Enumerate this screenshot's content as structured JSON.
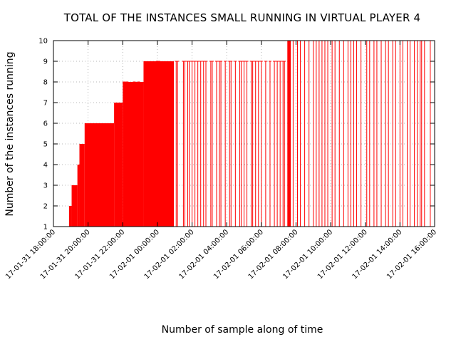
{
  "chart_data": {
    "type": "bar",
    "title": "TOTAL OF THE INSTANCES SMALL RUNNING IN VIRTUAL PLAYER 4",
    "xlabel": "Number of sample along of time",
    "ylabel": "Number of the instances running",
    "ylim": [
      1,
      10
    ],
    "xlim": [
      "2017-01-31 18:00:00",
      "2017-02-01 16:00:00"
    ],
    "grid": true,
    "legend": "none",
    "color": "#ff0000",
    "y_ticks": [
      "1",
      "2",
      "3",
      "4",
      "5",
      "6",
      "7",
      "8",
      "9",
      "10"
    ],
    "x_ticks": [
      "17-01-31 18:00:00",
      "17-01-31 20:00:00",
      "17-01-31 22:00:00",
      "17-02-01 00:00:00",
      "17-02-01 02:00:00",
      "17-02-01 04:00:00",
      "17-02-01 06:00:00",
      "17-02-01 08:00:00",
      "17-02-01 10:00:00",
      "17-02-01 12:00:00",
      "17-02-01 14:00:00",
      "17-02-01 16:00:00"
    ],
    "solid_blocks": [
      {
        "start": "2017-01-31 18:54:00",
        "end": "2017-01-31 19:03:00",
        "value": 2
      },
      {
        "start": "2017-01-31 19:03:00",
        "end": "2017-01-31 19:23:00",
        "value": 3
      },
      {
        "start": "2017-01-31 19:23:00",
        "end": "2017-01-31 19:30:00",
        "value": 4
      },
      {
        "start": "2017-01-31 19:30:00",
        "end": "2017-01-31 19:48:00",
        "value": 5
      },
      {
        "start": "2017-01-31 19:48:00",
        "end": "2017-01-31 21:30:00",
        "value": 6
      },
      {
        "start": "2017-01-31 21:30:00",
        "end": "2017-01-31 22:00:00",
        "value": 7
      },
      {
        "start": "2017-01-31 22:00:00",
        "end": "2017-01-31 23:12:00",
        "value": 8
      },
      {
        "start": "2017-01-31 23:12:00",
        "end": "2017-02-01 00:57:00",
        "value": 9
      },
      {
        "start": "2017-02-01 07:30:00",
        "end": "2017-02-01 07:42:00",
        "value": 10
      }
    ],
    "spikes": [
      {
        "time": "2017-01-31 22:05:00",
        "value": 8
      },
      {
        "time": "2017-01-31 22:15:00",
        "value": 8
      },
      {
        "time": "2017-01-31 22:40:00",
        "value": 8
      },
      {
        "time": "2017-01-31 22:55:00",
        "value": 8
      },
      {
        "time": "2017-02-01 00:00:00",
        "value": 9
      },
      {
        "time": "2017-02-01 00:05:00",
        "value": 9
      },
      {
        "time": "2017-02-01 01:05:00",
        "value": 9
      },
      {
        "time": "2017-02-01 01:10:00",
        "value": 9
      },
      {
        "time": "2017-02-01 01:30:00",
        "value": 9
      },
      {
        "time": "2017-02-01 01:35:00",
        "value": 9
      },
      {
        "time": "2017-02-01 01:45:00",
        "value": 9
      },
      {
        "time": "2017-02-01 01:50:00",
        "value": 9
      },
      {
        "time": "2017-02-01 02:00:00",
        "value": 9
      },
      {
        "time": "2017-02-01 02:10:00",
        "value": 9
      },
      {
        "time": "2017-02-01 02:20:00",
        "value": 9
      },
      {
        "time": "2017-02-01 02:30:00",
        "value": 9
      },
      {
        "time": "2017-02-01 02:40:00",
        "value": 9
      },
      {
        "time": "2017-02-01 02:48:00",
        "value": 9
      },
      {
        "time": "2017-02-01 03:05:00",
        "value": 9
      },
      {
        "time": "2017-02-01 03:10:00",
        "value": 9
      },
      {
        "time": "2017-02-01 03:25:00",
        "value": 9
      },
      {
        "time": "2017-02-01 03:35:00",
        "value": 9
      },
      {
        "time": "2017-02-01 03:40:00",
        "value": 9
      },
      {
        "time": "2017-02-01 03:55:00",
        "value": 9
      },
      {
        "time": "2017-02-01 04:10:00",
        "value": 9
      },
      {
        "time": "2017-02-01 04:15:00",
        "value": 9
      },
      {
        "time": "2017-02-01 04:30:00",
        "value": 9
      },
      {
        "time": "2017-02-01 04:45:00",
        "value": 9
      },
      {
        "time": "2017-02-01 04:50:00",
        "value": 9
      },
      {
        "time": "2017-02-01 05:00:00",
        "value": 9
      },
      {
        "time": "2017-02-01 05:10:00",
        "value": 9
      },
      {
        "time": "2017-02-01 05:25:00",
        "value": 9
      },
      {
        "time": "2017-02-01 05:30:00",
        "value": 9
      },
      {
        "time": "2017-02-01 05:40:00",
        "value": 9
      },
      {
        "time": "2017-02-01 05:50:00",
        "value": 9
      },
      {
        "time": "2017-02-01 06:00:00",
        "value": 9
      },
      {
        "time": "2017-02-01 06:15:00",
        "value": 9
      },
      {
        "time": "2017-02-01 06:30:00",
        "value": 9
      },
      {
        "time": "2017-02-01 06:45:00",
        "value": 9
      },
      {
        "time": "2017-02-01 06:55:00",
        "value": 9
      },
      {
        "time": "2017-02-01 07:05:00",
        "value": 9
      },
      {
        "time": "2017-02-01 07:15:00",
        "value": 9
      },
      {
        "time": "2017-02-01 07:20:00",
        "value": 9
      },
      {
        "time": "2017-02-01 07:50:00",
        "value": 10
      },
      {
        "time": "2017-02-01 08:05:00",
        "value": 10
      },
      {
        "time": "2017-02-01 08:15:00",
        "value": 10
      },
      {
        "time": "2017-02-01 08:30:00",
        "value": 10
      },
      {
        "time": "2017-02-01 08:45:00",
        "value": 10
      },
      {
        "time": "2017-02-01 09:00:00",
        "value": 10
      },
      {
        "time": "2017-02-01 09:10:00",
        "value": 10
      },
      {
        "time": "2017-02-01 09:20:00",
        "value": 10
      },
      {
        "time": "2017-02-01 09:30:00",
        "value": 10
      },
      {
        "time": "2017-02-01 09:40:00",
        "value": 10
      },
      {
        "time": "2017-02-01 09:50:00",
        "value": 10
      },
      {
        "time": "2017-02-01 10:05:00",
        "value": 10
      },
      {
        "time": "2017-02-01 10:15:00",
        "value": 10
      },
      {
        "time": "2017-02-01 10:30:00",
        "value": 10
      },
      {
        "time": "2017-02-01 10:45:00",
        "value": 10
      },
      {
        "time": "2017-02-01 11:00:00",
        "value": 10
      },
      {
        "time": "2017-02-01 11:10:00",
        "value": 10
      },
      {
        "time": "2017-02-01 11:20:00",
        "value": 10
      },
      {
        "time": "2017-02-01 11:30:00",
        "value": 10
      },
      {
        "time": "2017-02-01 11:45:00",
        "value": 10
      },
      {
        "time": "2017-02-01 12:05:00",
        "value": 10
      },
      {
        "time": "2017-02-01 12:15:00",
        "value": 10
      },
      {
        "time": "2017-02-01 12:30:00",
        "value": 10
      },
      {
        "time": "2017-02-01 12:40:00",
        "value": 10
      },
      {
        "time": "2017-02-01 12:55:00",
        "value": 10
      },
      {
        "time": "2017-02-01 13:10:00",
        "value": 10
      },
      {
        "time": "2017-02-01 13:20:00",
        "value": 10
      },
      {
        "time": "2017-02-01 13:35:00",
        "value": 10
      },
      {
        "time": "2017-02-01 13:45:00",
        "value": 10
      },
      {
        "time": "2017-02-01 14:00:00",
        "value": 10
      },
      {
        "time": "2017-02-01 14:10:00",
        "value": 10
      },
      {
        "time": "2017-02-01 14:25:00",
        "value": 10
      },
      {
        "time": "2017-02-01 14:35:00",
        "value": 10
      },
      {
        "time": "2017-02-01 14:50:00",
        "value": 10
      },
      {
        "time": "2017-02-01 15:00:00",
        "value": 10
      },
      {
        "time": "2017-02-01 15:10:00",
        "value": 10
      },
      {
        "time": "2017-02-01 15:15:00",
        "value": 10
      },
      {
        "time": "2017-02-01 15:25:00",
        "value": 10
      },
      {
        "time": "2017-02-01 15:45:00",
        "value": 10
      }
    ]
  }
}
